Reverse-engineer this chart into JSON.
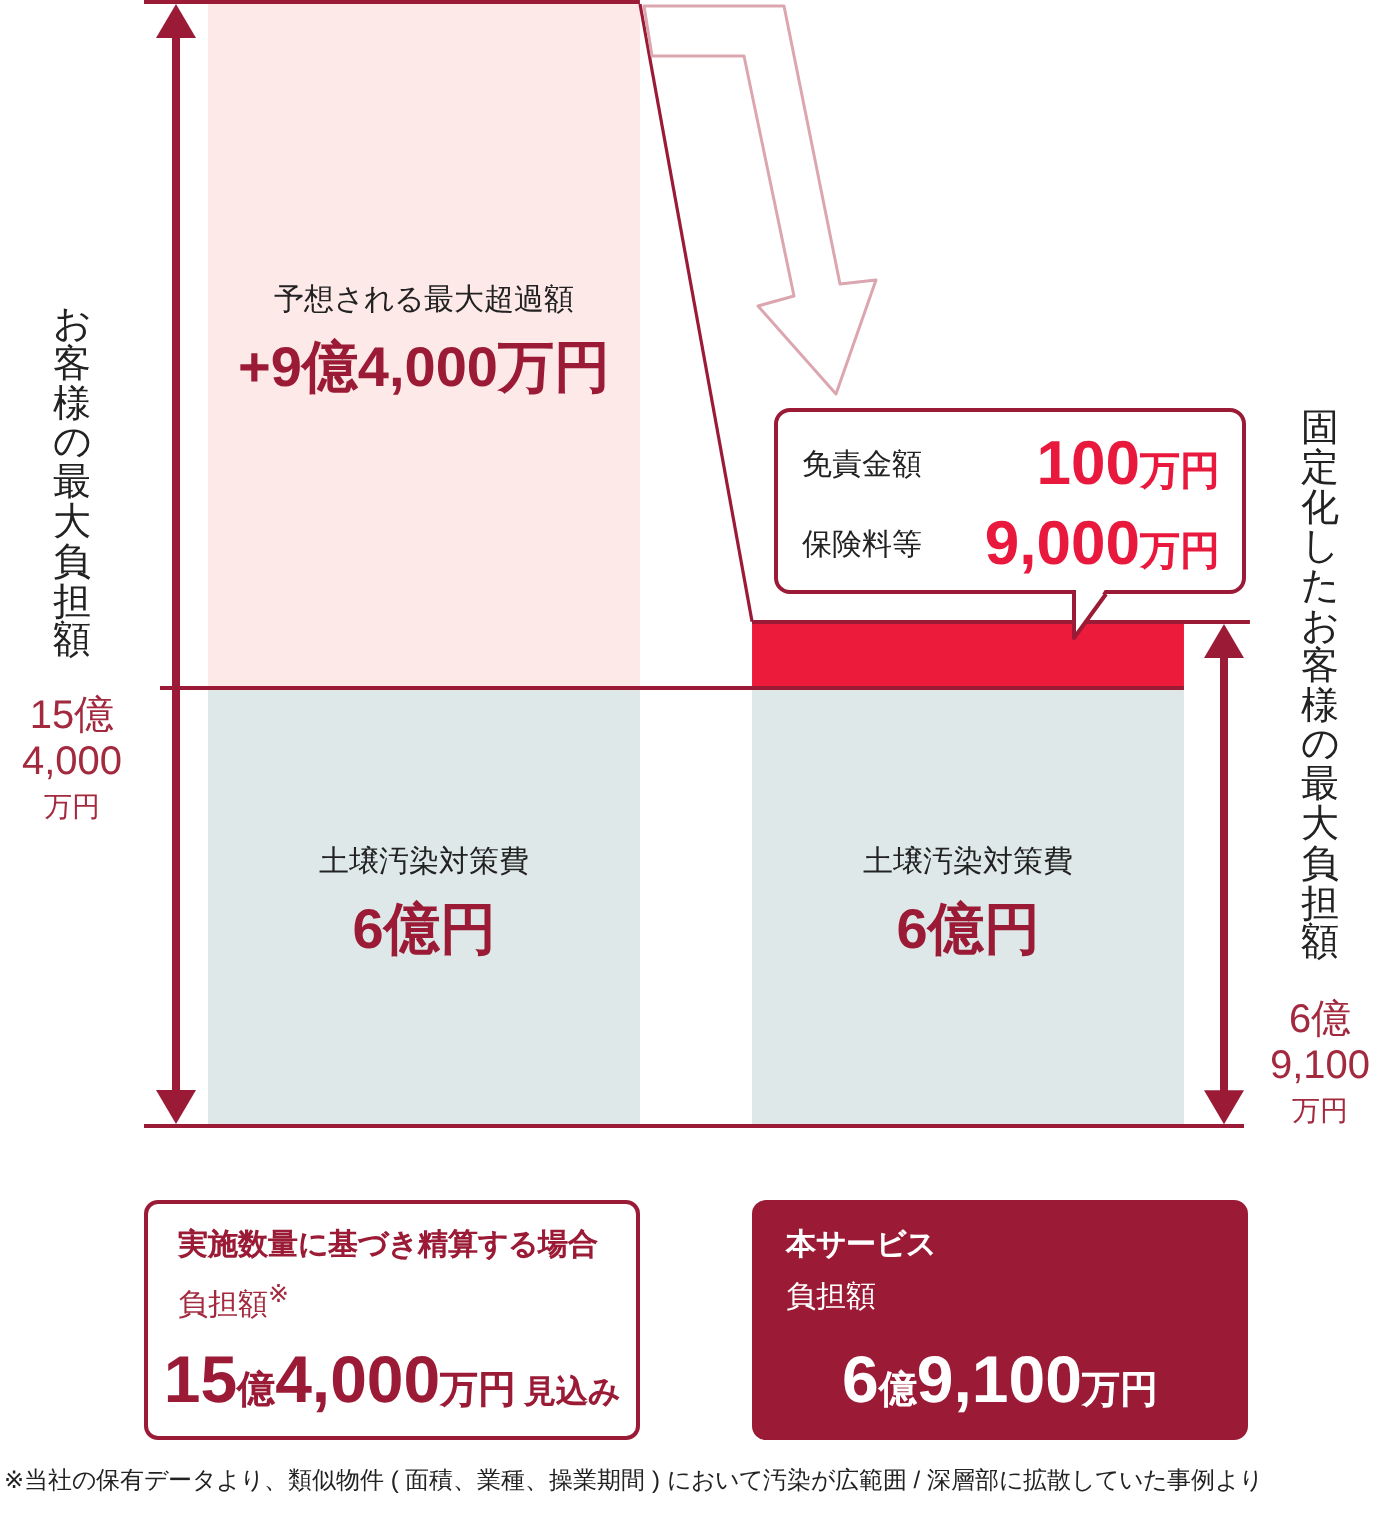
{
  "chart_data": {
    "type": "bar",
    "stacked": true,
    "categories": [
      "実施数量に基づき精算する場合",
      "本サービス"
    ],
    "series": [
      {
        "name": "土壌汚染対策費",
        "color": "#dfe8e8",
        "values": [
          6,
          6
        ],
        "value_labels": [
          "6億円",
          "6億円"
        ]
      },
      {
        "name": "予想される最大超過額",
        "color": "#fde9e7",
        "values": [
          9.4,
          null
        ],
        "value_labels": [
          "+9億4,000万円",
          null
        ]
      },
      {
        "color": "#ed1b3b",
        "values": [
          null,
          0.91
        ]
      }
    ],
    "tick_labels": "x",
    "ref_lines": [
      {
        "axis": "y",
        "value": 6,
        "color": "#9b1b36"
      }
    ],
    "annotations": [
      "お客様の最大負担額",
      "15億4,000万円",
      "固定化したお客様の最大負担額",
      "6億9,100万円",
      "免責金額",
      "100万円",
      "保険料等",
      "9,000万円",
      "負担額$^{※}$",
      "15億4,000万円",
      "見込み",
      "負担額",
      "6億9,100万円",
      "※当社の保有データより、類似物件 ( 面積、業種、操業期間 ) において汚染が広範囲 / 深層部に拡散していた事例より"
    ]
  }
}
